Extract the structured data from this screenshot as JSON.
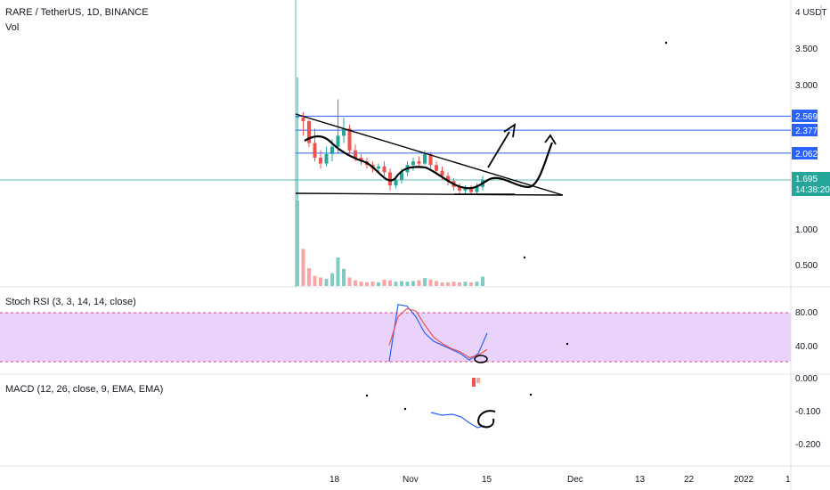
{
  "header": {
    "symbol_line": "RARE / TetherUS, 1D, BINANCE",
    "vol_label": "Vol",
    "stoch_label": "Stoch RSI (3, 3, 14, 14, close)",
    "macd_label": "MACD (12, 26, close, 9, EMA, EMA)"
  },
  "price_axis": {
    "unit_label": "4 USDT",
    "ticks": [
      "3.500",
      "3.000"
    ],
    "levels": [
      "2.569",
      "2.377",
      "2.062"
    ],
    "current_price": "1.695",
    "countdown": "14:38:20",
    "level_color": "#2962ff",
    "current_color": "#26a69a"
  },
  "volume_axis": {
    "ticks": [
      "1.000",
      "0.500"
    ]
  },
  "stoch_axis": {
    "ticks": [
      "80.00",
      "40.00"
    ]
  },
  "macd_axis": {
    "ticks": [
      "0.000",
      "-0.100",
      "-0.200"
    ]
  },
  "time_axis": {
    "labels": [
      "18",
      "Nov",
      "15",
      "Dec",
      "13",
      "22",
      "2022",
      "1"
    ]
  },
  "colors": {
    "up": "#26a69a",
    "down": "#ef5350",
    "stoch_band": "#e9d3fb",
    "k_line": "#2962ff",
    "d_line": "#ef5350"
  },
  "chart_data": {
    "type": "candlestick",
    "title": "RARE / TetherUS, 1D, BINANCE",
    "ylabel": "USDT",
    "ylim": [
      1.3,
      4.05
    ],
    "candles": [
      [
        2.56,
        3.1,
        1.4,
        2.56
      ],
      [
        2.55,
        2.62,
        2.3,
        2.5
      ],
      [
        2.5,
        2.52,
        2.15,
        2.2
      ],
      [
        2.2,
        2.4,
        1.95,
        2.0
      ],
      [
        2.0,
        2.1,
        1.85,
        1.92
      ],
      [
        1.92,
        2.15,
        1.88,
        2.05
      ],
      [
        2.05,
        2.25,
        1.95,
        2.15
      ],
      [
        2.15,
        2.8,
        2.05,
        2.3
      ],
      [
        2.3,
        2.55,
        2.2,
        2.4
      ],
      [
        2.4,
        2.45,
        2.05,
        2.1
      ],
      [
        2.1,
        2.18,
        1.95,
        2.0
      ],
      [
        2.0,
        2.05,
        1.9,
        1.95
      ],
      [
        1.95,
        2.0,
        1.85,
        1.9
      ],
      [
        1.9,
        1.95,
        1.8,
        1.85
      ],
      [
        1.85,
        1.92,
        1.78,
        1.88
      ],
      [
        1.88,
        1.95,
        1.75,
        1.8
      ],
      [
        1.8,
        1.85,
        1.55,
        1.62
      ],
      [
        1.62,
        1.75,
        1.58,
        1.7
      ],
      [
        1.7,
        1.85,
        1.65,
        1.8
      ],
      [
        1.8,
        1.95,
        1.75,
        1.9
      ],
      [
        1.9,
        2.0,
        1.82,
        1.95
      ],
      [
        1.95,
        2.02,
        1.88,
        1.92
      ],
      [
        1.92,
        2.1,
        1.9,
        2.05
      ],
      [
        2.05,
        2.08,
        1.85,
        1.9
      ],
      [
        1.9,
        1.95,
        1.78,
        1.82
      ],
      [
        1.82,
        1.88,
        1.7,
        1.75
      ],
      [
        1.75,
        1.8,
        1.62,
        1.68
      ],
      [
        1.68,
        1.72,
        1.55,
        1.6
      ],
      [
        1.6,
        1.65,
        1.5,
        1.55
      ],
      [
        1.55,
        1.62,
        1.5,
        1.58
      ],
      [
        1.58,
        1.62,
        1.5,
        1.53
      ],
      [
        1.53,
        1.65,
        1.5,
        1.6
      ],
      [
        1.6,
        1.75,
        1.55,
        1.695
      ]
    ],
    "volume": [
      1.2,
      0.52,
      0.25,
      0.14,
      0.12,
      0.1,
      0.18,
      0.4,
      0.24,
      0.12,
      0.08,
      0.06,
      0.05,
      0.06,
      0.05,
      0.09,
      0.08,
      0.06,
      0.07,
      0.06,
      0.07,
      0.08,
      0.11,
      0.09,
      0.07,
      0.05,
      0.05,
      0.06,
      0.05,
      0.06,
      0.05,
      0.06,
      0.13
    ],
    "stoch_k": [
      20,
      90,
      88,
      75,
      55,
      45,
      40,
      35,
      30,
      22,
      30,
      55
    ],
    "stoch_d": [
      40,
      75,
      85,
      82,
      65,
      50,
      42,
      36,
      32,
      25,
      28,
      35
    ],
    "levels": [
      2.569,
      2.377,
      2.062
    ],
    "current": 1.695
  }
}
